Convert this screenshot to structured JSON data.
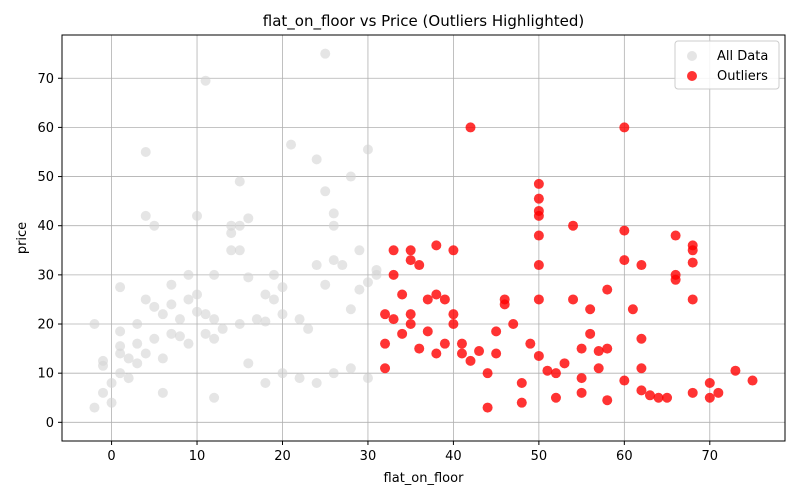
{
  "chart_data": {
    "type": "scatter",
    "title": "flat_on_floor vs Price (Outliers Highlighted)",
    "xlabel": "flat_on_floor",
    "ylabel": "price",
    "xlim": [
      -5.8,
      78.8
    ],
    "ylim": [
      -3.8,
      78.8
    ],
    "xticks": [
      0,
      10,
      20,
      30,
      40,
      50,
      60,
      70
    ],
    "yticks": [
      0,
      10,
      20,
      30,
      40,
      50,
      60,
      70
    ],
    "grid": true,
    "legend_position": "top-right",
    "series": [
      {
        "name": "All Data",
        "color": "#d3d3d3",
        "points": [
          [
            -2,
            20
          ],
          [
            -2,
            3
          ],
          [
            -1,
            12.5
          ],
          [
            -1,
            11.5
          ],
          [
            -1,
            6
          ],
          [
            0,
            8
          ],
          [
            0,
            4
          ],
          [
            1,
            27.5
          ],
          [
            1,
            18.5
          ],
          [
            1,
            15.5
          ],
          [
            1,
            14
          ],
          [
            1,
            10
          ],
          [
            2,
            13
          ],
          [
            2,
            9
          ],
          [
            3,
            20
          ],
          [
            3,
            16
          ],
          [
            3,
            12
          ],
          [
            4,
            55
          ],
          [
            4,
            42
          ],
          [
            4,
            25
          ],
          [
            4,
            14
          ],
          [
            5,
            40
          ],
          [
            5,
            23.5
          ],
          [
            5,
            17
          ],
          [
            6,
            22
          ],
          [
            6,
            13
          ],
          [
            7,
            28
          ],
          [
            7,
            24
          ],
          [
            7,
            18
          ],
          [
            8,
            21
          ],
          [
            8,
            17.5
          ],
          [
            9,
            30
          ],
          [
            9,
            25
          ],
          [
            9,
            16
          ],
          [
            10,
            42
          ],
          [
            10,
            26
          ],
          [
            10,
            22.5
          ],
          [
            11,
            69.5
          ],
          [
            11,
            22
          ],
          [
            11,
            18
          ],
          [
            12,
            30
          ],
          [
            12,
            21
          ],
          [
            12,
            17
          ],
          [
            13,
            19
          ],
          [
            14,
            40
          ],
          [
            14,
            38.5
          ],
          [
            14,
            35
          ],
          [
            15,
            49
          ],
          [
            15,
            40
          ],
          [
            15,
            35
          ],
          [
            15,
            20
          ],
          [
            16,
            41.5
          ],
          [
            16,
            29.5
          ],
          [
            17,
            21
          ],
          [
            18,
            26
          ],
          [
            18,
            20.5
          ],
          [
            19,
            30
          ],
          [
            19,
            25
          ],
          [
            20,
            27.5
          ],
          [
            20,
            22
          ],
          [
            21,
            56.5
          ],
          [
            22,
            21
          ],
          [
            23,
            19
          ],
          [
            24,
            53.5
          ],
          [
            24,
            32
          ],
          [
            25,
            75
          ],
          [
            25,
            47
          ],
          [
            25,
            28
          ],
          [
            26,
            42.5
          ],
          [
            26,
            40
          ],
          [
            26,
            33
          ],
          [
            27,
            32
          ],
          [
            28,
            50
          ],
          [
            28,
            23
          ],
          [
            29,
            35
          ],
          [
            29,
            27
          ],
          [
            30,
            55.5
          ],
          [
            30,
            28.5
          ],
          [
            31,
            31
          ],
          [
            31,
            30
          ],
          [
            16,
            12
          ],
          [
            18,
            8
          ],
          [
            20,
            10
          ],
          [
            22,
            9
          ],
          [
            24,
            8
          ],
          [
            26,
            10
          ],
          [
            28,
            11
          ],
          [
            30,
            9
          ],
          [
            6,
            6
          ],
          [
            12,
            5
          ]
        ]
      },
      {
        "name": "Outliers",
        "color": "#ff0000",
        "points": [
          [
            32,
            22
          ],
          [
            32,
            16
          ],
          [
            32,
            11
          ],
          [
            33,
            35
          ],
          [
            33,
            30
          ],
          [
            33,
            21
          ],
          [
            34,
            26
          ],
          [
            34,
            18
          ],
          [
            35,
            35
          ],
          [
            35,
            33
          ],
          [
            35,
            22
          ],
          [
            35,
            20
          ],
          [
            36,
            32
          ],
          [
            36,
            15
          ],
          [
            37,
            25
          ],
          [
            37,
            18.5
          ],
          [
            38,
            36
          ],
          [
            38,
            26
          ],
          [
            38,
            14
          ],
          [
            39,
            25
          ],
          [
            39,
            16
          ],
          [
            40,
            35
          ],
          [
            40,
            22
          ],
          [
            40,
            20
          ],
          [
            41,
            16
          ],
          [
            41,
            14
          ],
          [
            42,
            60
          ],
          [
            42,
            12.5
          ],
          [
            43,
            14.5
          ],
          [
            44,
            10
          ],
          [
            45,
            18.5
          ],
          [
            45,
            14
          ],
          [
            46,
            25
          ],
          [
            46,
            24
          ],
          [
            47,
            20
          ],
          [
            48,
            8
          ],
          [
            49,
            16
          ],
          [
            50,
            48.5
          ],
          [
            50,
            45.5
          ],
          [
            50,
            43
          ],
          [
            50,
            42
          ],
          [
            50,
            38
          ],
          [
            50,
            32
          ],
          [
            50,
            25
          ],
          [
            50,
            13.5
          ],
          [
            51,
            10.5
          ],
          [
            52,
            10
          ],
          [
            53,
            12
          ],
          [
            54,
            40
          ],
          [
            54,
            25
          ],
          [
            55,
            15
          ],
          [
            55,
            9
          ],
          [
            56,
            23
          ],
          [
            56,
            18
          ],
          [
            57,
            14.5
          ],
          [
            57,
            11
          ],
          [
            58,
            27
          ],
          [
            58,
            15
          ],
          [
            60,
            60
          ],
          [
            60,
            39
          ],
          [
            60,
            33
          ],
          [
            60,
            8.5
          ],
          [
            61,
            23
          ],
          [
            62,
            32
          ],
          [
            62,
            17
          ],
          [
            62,
            11
          ],
          [
            63,
            5.5
          ],
          [
            65,
            5
          ],
          [
            66,
            38
          ],
          [
            66,
            30
          ],
          [
            66,
            29
          ],
          [
            68,
            36
          ],
          [
            68,
            35
          ],
          [
            68,
            32.5
          ],
          [
            68,
            25
          ],
          [
            68,
            6
          ],
          [
            70,
            8
          ],
          [
            70,
            5
          ],
          [
            71,
            6
          ],
          [
            73,
            10.5
          ],
          [
            75,
            8.5
          ],
          [
            55,
            6
          ],
          [
            52,
            5
          ],
          [
            48,
            4
          ],
          [
            44,
            3
          ],
          [
            58,
            4.5
          ],
          [
            62,
            6.5
          ],
          [
            64,
            5
          ]
        ]
      }
    ]
  }
}
